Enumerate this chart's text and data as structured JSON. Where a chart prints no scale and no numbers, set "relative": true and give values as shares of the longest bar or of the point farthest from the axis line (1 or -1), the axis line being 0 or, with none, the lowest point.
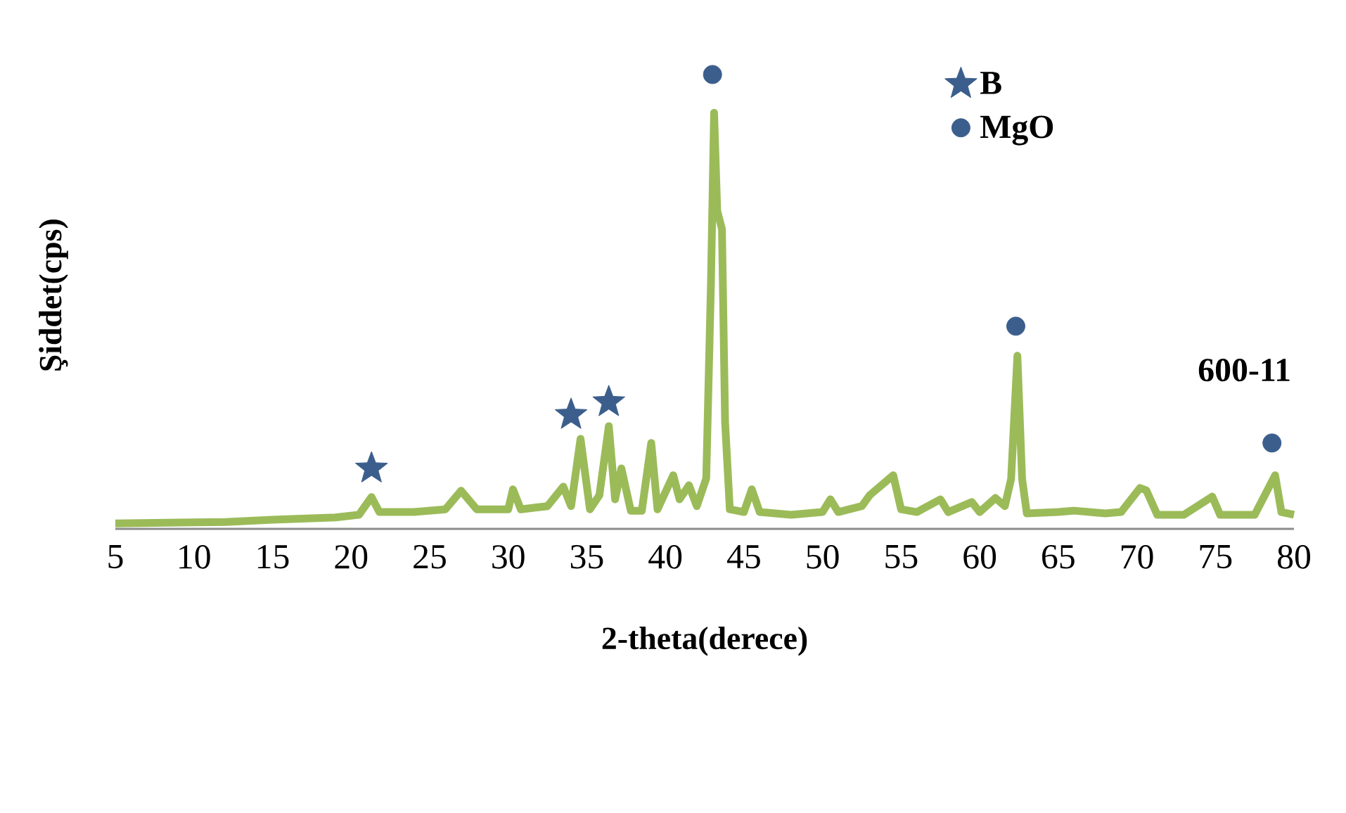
{
  "chart_data": {
    "type": "line",
    "relative": true,
    "xlabel": "2-theta(derece)",
    "ylabel": "Şiddet(cps)",
    "xlim": [
      5,
      80
    ],
    "xticks": [
      5,
      10,
      15,
      20,
      25,
      30,
      35,
      40,
      45,
      50,
      55,
      60,
      65,
      70,
      75,
      80
    ],
    "tick_labels": "x",
    "legend": "top right",
    "annotations": [
      "600-11"
    ],
    "series": [
      {
        "type": "line",
        "color": "#9bbb59",
        "marker": "none",
        "x": [
          5,
          12,
          15,
          19,
          20.5,
          21.3,
          21.8,
          24,
          26,
          27,
          28,
          30,
          30.3,
          30.8,
          32.5,
          33.5,
          34,
          34.6,
          35.2,
          35.8,
          36.4,
          36.8,
          37.2,
          37.8,
          38.5,
          39.1,
          39.5,
          40.5,
          40.9,
          41.5,
          42,
          42.6,
          42.9,
          43.1,
          43.3,
          43.6,
          43.8,
          44.1,
          45,
          45.5,
          46,
          48,
          50,
          50.5,
          51,
          52.5,
          53,
          54.5,
          55,
          56,
          57.5,
          58,
          59.5,
          60,
          61,
          61.6,
          62,
          62.4,
          62.7,
          63,
          65,
          66,
          68,
          69,
          70.2,
          70.6,
          71.3,
          73,
          74.8,
          75.3,
          77.5,
          78.8,
          79.2,
          80
        ],
        "values": [
          0.012,
          0.015,
          0.02,
          0.025,
          0.031,
          0.07,
          0.037,
          0.037,
          0.043,
          0.084,
          0.043,
          0.043,
          0.087,
          0.043,
          0.05,
          0.093,
          0.05,
          0.198,
          0.043,
          0.074,
          0.226,
          0.065,
          0.133,
          0.04,
          0.04,
          0.189,
          0.043,
          0.118,
          0.065,
          0.096,
          0.05,
          0.111,
          0.54,
          0.916,
          0.7,
          0.66,
          0.235,
          0.043,
          0.037,
          0.087,
          0.037,
          0.031,
          0.037,
          0.065,
          0.037,
          0.05,
          0.074,
          0.118,
          0.043,
          0.037,
          0.065,
          0.037,
          0.059,
          0.037,
          0.068,
          0.05,
          0.11,
          0.381,
          0.11,
          0.034,
          0.037,
          0.04,
          0.034,
          0.037,
          0.09,
          0.085,
          0.031,
          0.031,
          0.071,
          0.031,
          0.031,
          0.118,
          0.037,
          0.031
        ]
      },
      {
        "type": "scatter",
        "name": "B",
        "color": "#3b5e8c",
        "marker": "star",
        "x": [
          21.3,
          34.0,
          36.4
        ],
        "values": [
          0.133,
          0.251,
          0.279
        ]
      },
      {
        "type": "scatter",
        "name": "MgO",
        "color": "#3b5e8c",
        "marker": "circle",
        "x": [
          43.0,
          62.3,
          78.6
        ],
        "values": [
          1.0,
          0.446,
          0.189
        ]
      }
    ]
  }
}
